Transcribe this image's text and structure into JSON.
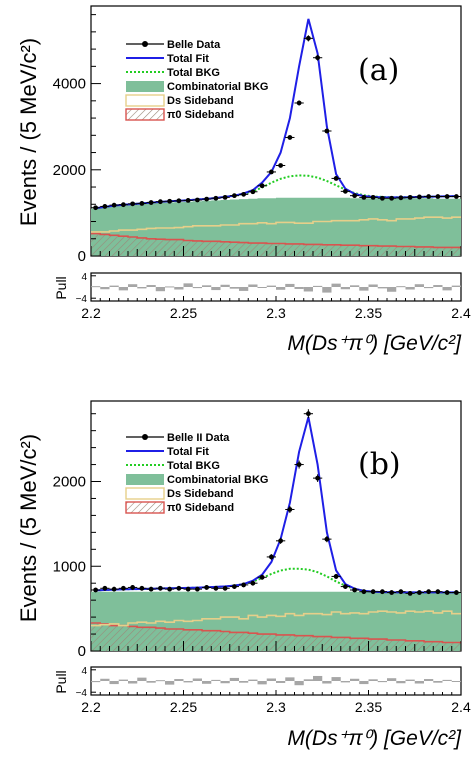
{
  "colors": {
    "fit": "#1f1fe6",
    "bkg": "#22cc22",
    "combinatorial": "#7fbf9a",
    "ds_sideband": "#e6cf8a",
    "pi0_sideband": "#d9544f",
    "pull": "#a6a6a6"
  },
  "chart_data": [
    {
      "type": "line",
      "panel_label": "(a)",
      "ylabel": "Events / (5 MeV/c²)",
      "xlabel": "M(Ds⁺π⁰)   [GeV/c²]",
      "pull_label": "Pull",
      "xlim": [
        2.2,
        2.4
      ],
      "ylim": [
        0,
        5800
      ],
      "yticks": [
        0,
        2000,
        4000
      ],
      "xticks": [
        2.2,
        2.25,
        2.3,
        2.35,
        2.4
      ],
      "pull_ticks": [
        4,
        -4
      ],
      "legend": {
        "placement": "top-left",
        "entries": [
          "Belle Data",
          "Total Fit",
          "Total BKG",
          "Combinatorial BKG",
          "Ds Sideband",
          "π0 Sideband"
        ]
      },
      "x": [
        2.2025,
        2.2075,
        2.2125,
        2.2175,
        2.2225,
        2.2275,
        2.2325,
        2.2375,
        2.2425,
        2.2475,
        2.2525,
        2.2575,
        2.2625,
        2.2675,
        2.2725,
        2.2775,
        2.2825,
        2.2875,
        2.2925,
        2.2975,
        2.3025,
        2.3075,
        2.3125,
        2.3175,
        2.3225,
        2.3275,
        2.3325,
        2.3375,
        2.3425,
        2.3475,
        2.3525,
        2.3575,
        2.3625,
        2.3675,
        2.3725,
        2.3775,
        2.3825,
        2.3875,
        2.3925,
        2.3975
      ],
      "series": [
        {
          "name": "Belle Data",
          "values": [
            1120,
            1150,
            1180,
            1190,
            1210,
            1220,
            1240,
            1260,
            1270,
            1280,
            1290,
            1300,
            1320,
            1340,
            1360,
            1400,
            1430,
            1490,
            1630,
            1950,
            2100,
            2750,
            3550,
            5050,
            4600,
            2900,
            1800,
            1500,
            1400,
            1360,
            1360,
            1340,
            1340,
            1350,
            1360,
            1370,
            1380,
            1380,
            1380,
            1380
          ]
        },
        {
          "name": "Total Fit",
          "values": [
            1110,
            1140,
            1170,
            1190,
            1205,
            1220,
            1240,
            1255,
            1270,
            1280,
            1295,
            1310,
            1325,
            1345,
            1370,
            1400,
            1450,
            1530,
            1700,
            1950,
            2400,
            3200,
            4400,
            5500,
            4700,
            3000,
            1900,
            1560,
            1440,
            1390,
            1370,
            1360,
            1360,
            1360,
            1365,
            1370,
            1375,
            1380,
            1385,
            1390
          ]
        },
        {
          "name": "Total BKG",
          "values": [
            1110,
            1140,
            1170,
            1190,
            1205,
            1220,
            1240,
            1255,
            1270,
            1280,
            1295,
            1310,
            1325,
            1345,
            1370,
            1400,
            1440,
            1500,
            1590,
            1700,
            1790,
            1850,
            1870,
            1860,
            1820,
            1740,
            1640,
            1540,
            1460,
            1410,
            1380,
            1370,
            1365,
            1365,
            1368,
            1372,
            1376,
            1380,
            1385,
            1390
          ]
        },
        {
          "name": "Combinatorial BKG",
          "values": [
            1100,
            1130,
            1160,
            1180,
            1200,
            1210,
            1220,
            1230,
            1240,
            1250,
            1260,
            1270,
            1280,
            1290,
            1300,
            1310,
            1320,
            1330,
            1340,
            1340,
            1350,
            1350,
            1350,
            1350,
            1350,
            1350,
            1350,
            1350,
            1340,
            1340,
            1340,
            1340,
            1340,
            1340,
            1340,
            1340,
            1340,
            1330,
            1330,
            1330
          ]
        },
        {
          "name": "Ds Sideband",
          "values": [
            560,
            560,
            580,
            600,
            600,
            620,
            640,
            650,
            650,
            660,
            680,
            700,
            700,
            700,
            720,
            720,
            750,
            750,
            770,
            750,
            780,
            780,
            760,
            760,
            800,
            800,
            820,
            820,
            820,
            840,
            860,
            840,
            820,
            860,
            860,
            880,
            900,
            900,
            880,
            900
          ]
        },
        {
          "name": "π0 Sideband",
          "values": [
            520,
            500,
            480,
            460,
            440,
            420,
            400,
            390,
            380,
            380,
            360,
            350,
            340,
            340,
            330,
            320,
            310,
            300,
            300,
            290,
            290,
            280,
            280,
            270,
            270,
            260,
            260,
            250,
            250,
            240,
            240,
            230,
            230,
            220,
            220,
            210,
            210,
            200,
            200,
            200
          ]
        }
      ],
      "pull": [
        0.3,
        -0.8,
        0.5,
        -1.2,
        1.0,
        -0.5,
        0.7,
        -1.5,
        0.2,
        -0.9,
        1.3,
        -0.4,
        0.6,
        -1.1,
        0.8,
        -0.6,
        -1.4,
        0.9,
        -0.3,
        0.5,
        -1.0,
        1.1,
        -0.7,
        -1.6,
        0.4,
        -2.0,
        1.2,
        -0.8,
        0.6,
        -1.3,
        0.9,
        -0.5,
        -1.7,
        0.3,
        -0.9,
        1.0,
        -0.4,
        0.7,
        -1.2,
        0.5
      ]
    },
    {
      "type": "line",
      "panel_label": "(b)",
      "ylabel": "Events / (5 MeV/c²)",
      "xlabel": "M(Ds⁺π⁰)   [GeV/c²]",
      "pull_label": "Pull",
      "xlim": [
        2.2,
        2.4
      ],
      "ylim": [
        0,
        2950
      ],
      "yticks": [
        0,
        1000,
        2000
      ],
      "xticks": [
        2.2,
        2.25,
        2.3,
        2.35,
        2.4
      ],
      "pull_ticks": [
        4,
        -4
      ],
      "legend": {
        "placement": "top-left",
        "entries": [
          "Belle II Data",
          "Total Fit",
          "Total BKG",
          "Combinatorial BKG",
          "Ds Sideband",
          "π0 Sideband"
        ]
      },
      "x": [
        2.2025,
        2.2075,
        2.2125,
        2.2175,
        2.2225,
        2.2275,
        2.2325,
        2.2375,
        2.2425,
        2.2475,
        2.2525,
        2.2575,
        2.2625,
        2.2675,
        2.2725,
        2.2775,
        2.2825,
        2.2875,
        2.2925,
        2.2975,
        2.3025,
        2.3075,
        2.3125,
        2.3175,
        2.3225,
        2.3275,
        2.3325,
        2.3375,
        2.3425,
        2.3475,
        2.3525,
        2.3575,
        2.3625,
        2.3675,
        2.3725,
        2.3775,
        2.3825,
        2.3875,
        2.3925,
        2.3975
      ],
      "series": [
        {
          "name": "Belle II Data",
          "values": [
            720,
            740,
            730,
            740,
            750,
            740,
            730,
            740,
            730,
            740,
            730,
            730,
            750,
            740,
            740,
            760,
            780,
            800,
            870,
            1110,
            1300,
            1670,
            2200,
            2800,
            2040,
            1320,
            880,
            760,
            720,
            700,
            700,
            700,
            690,
            700,
            680,
            690,
            700,
            700,
            690,
            690
          ]
        },
        {
          "name": "Total Fit",
          "values": [
            715,
            720,
            725,
            728,
            730,
            732,
            735,
            738,
            740,
            742,
            745,
            748,
            752,
            756,
            762,
            772,
            790,
            830,
            900,
            1050,
            1320,
            1750,
            2350,
            2760,
            2200,
            1400,
            950,
            790,
            735,
            710,
            700,
            695,
            693,
            692,
            692,
            692,
            692,
            692,
            692,
            692
          ]
        },
        {
          "name": "Total BKG",
          "values": [
            715,
            720,
            725,
            728,
            730,
            732,
            735,
            738,
            740,
            742,
            745,
            748,
            752,
            756,
            762,
            772,
            790,
            820,
            860,
            910,
            950,
            970,
            970,
            960,
            930,
            880,
            820,
            770,
            730,
            710,
            700,
            695,
            693,
            692,
            692,
            692,
            692,
            692,
            692,
            692
          ]
        },
        {
          "name": "Combinatorial BKG",
          "values": [
            700,
            700,
            700,
            700,
            700,
            700,
            700,
            700,
            700,
            700,
            700,
            700,
            700,
            700,
            700,
            700,
            700,
            700,
            700,
            700,
            700,
            700,
            700,
            700,
            700,
            700,
            700,
            700,
            700,
            700,
            700,
            700,
            700,
            700,
            700,
            700,
            700,
            700,
            700,
            700
          ]
        },
        {
          "name": "Ds Sideband",
          "values": [
            300,
            310,
            320,
            300,
            330,
            340,
            330,
            350,
            340,
            360,
            350,
            360,
            380,
            380,
            400,
            400,
            380,
            420,
            400,
            420,
            410,
            440,
            420,
            440,
            440,
            430,
            460,
            440,
            450,
            440,
            460,
            470,
            460,
            450,
            470,
            460,
            470,
            450,
            470,
            440
          ]
        },
        {
          "name": "π0 Sideband",
          "values": [
            330,
            320,
            300,
            300,
            290,
            280,
            280,
            270,
            260,
            260,
            250,
            250,
            240,
            240,
            230,
            220,
            220,
            210,
            200,
            200,
            190,
            190,
            180,
            180,
            170,
            170,
            160,
            160,
            150,
            150,
            140,
            140,
            130,
            130,
            120,
            120,
            110,
            110,
            100,
            100
          ]
        }
      ],
      "pull": [
        -0.4,
        0.8,
        -1.1,
        0.5,
        -0.9,
        1.2,
        -0.6,
        0.3,
        -1.3,
        0.7,
        -0.5,
        0.9,
        -1.0,
        0.4,
        -0.8,
        1.1,
        -0.6,
        0.5,
        -1.2,
        0.9,
        -0.7,
        1.3,
        -1.5,
        0.6,
        1.8,
        -0.9,
        1.4,
        -0.5,
        0.8,
        -1.1,
        0.6,
        -0.4,
        1.0,
        -0.8,
        0.5,
        -0.9,
        0.7,
        -0.6,
        0.4,
        -0.3
      ]
    }
  ]
}
